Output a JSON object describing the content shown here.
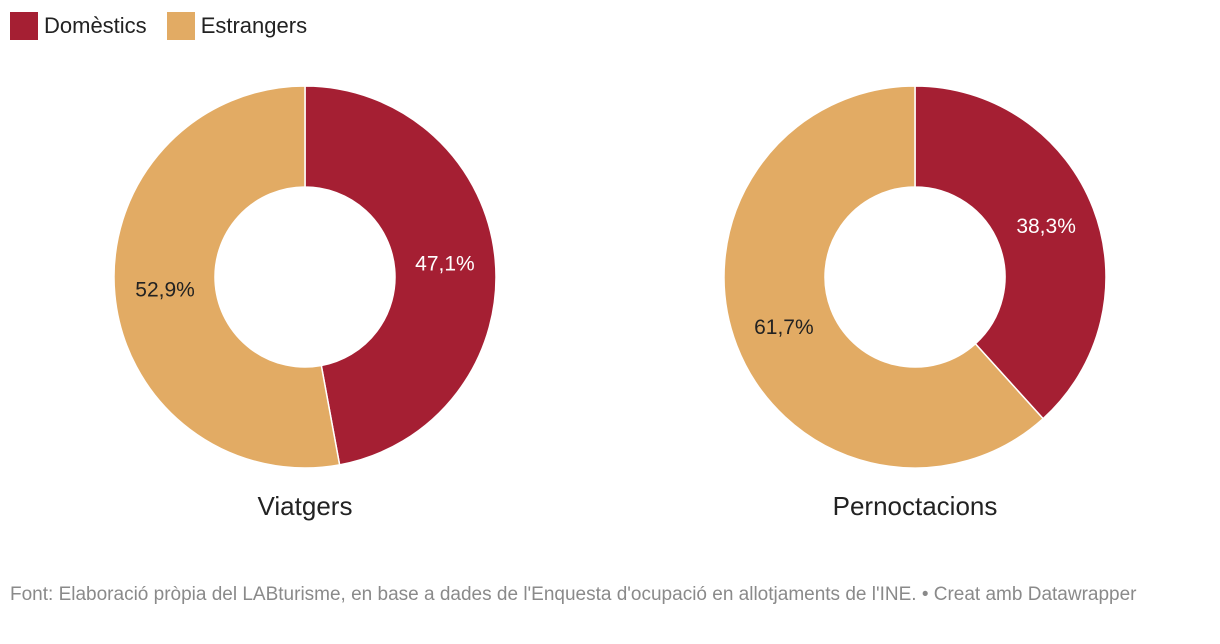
{
  "legend": {
    "items": [
      {
        "label": "Domèstics",
        "color": "#a51f33"
      },
      {
        "label": "Estrangers",
        "color": "#e2ab64"
      }
    ]
  },
  "chart_data": [
    {
      "type": "pie",
      "donut": true,
      "title": "Viatgers",
      "slices": [
        {
          "name": "Domèstics",
          "value": 47.1,
          "label": "47,1%",
          "color": "#a51f33",
          "label_color": "#ffffff"
        },
        {
          "name": "Estrangers",
          "value": 52.9,
          "label": "52,9%",
          "color": "#e2ab64",
          "label_color": "#222222"
        }
      ]
    },
    {
      "type": "pie",
      "donut": true,
      "title": "Pernoctacions",
      "slices": [
        {
          "name": "Domèstics",
          "value": 38.3,
          "label": "38,3%",
          "color": "#a51f33",
          "label_color": "#ffffff"
        },
        {
          "name": "Estrangers",
          "value": 61.7,
          "label": "61,7%",
          "color": "#e2ab64",
          "label_color": "#222222"
        }
      ]
    }
  ],
  "footer": {
    "source": "Font: Elaboració pròpia del LABturisme, en base a dades de l'Enquesta d'ocupació en allotjaments de l'INE. • Creat amb Datawrapper"
  }
}
